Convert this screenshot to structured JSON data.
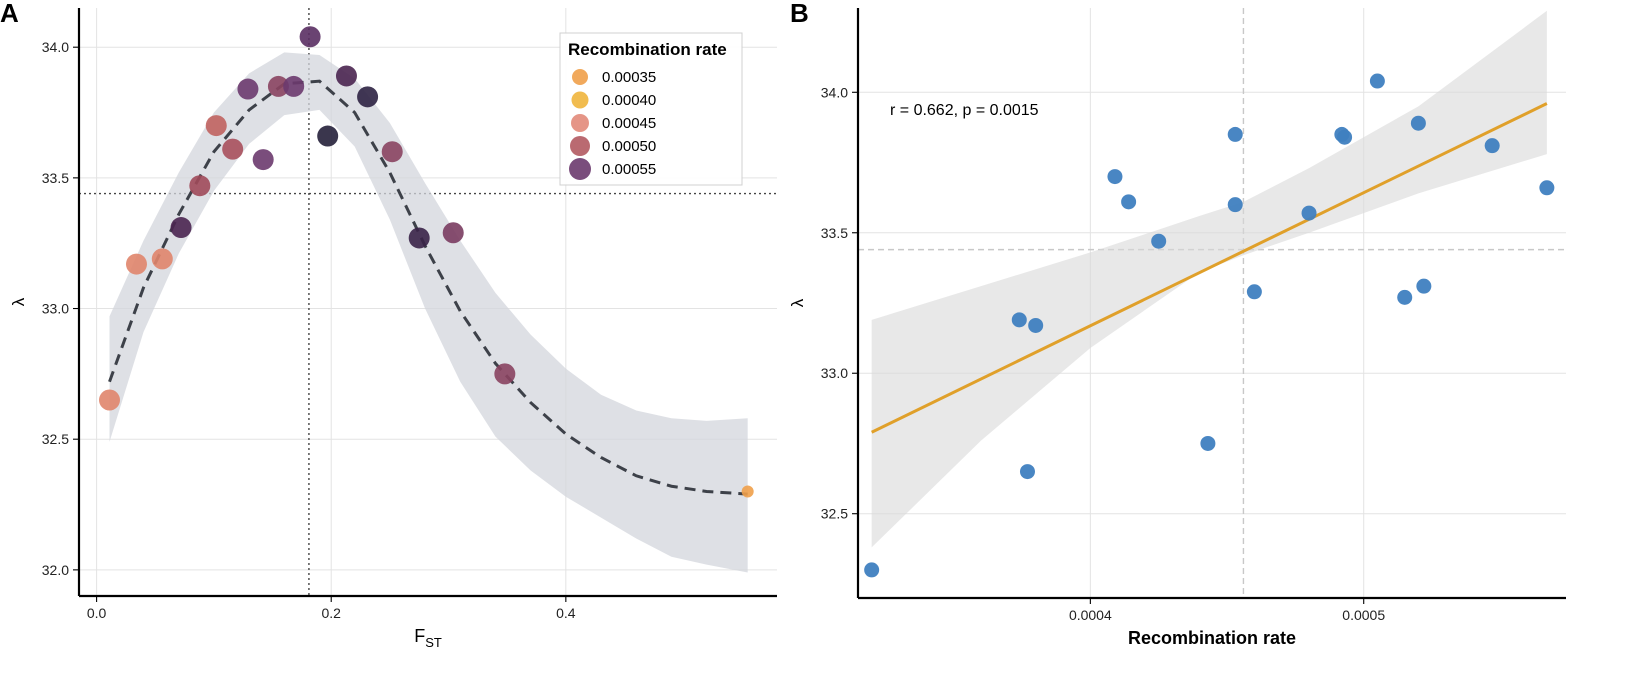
{
  "chart_data": [
    {
      "panel": "A",
      "type": "scatter",
      "title": "",
      "xlabel_main": "F",
      "xlabel_sub": "ST",
      "ylabel": "λ",
      "xlim": [
        -0.015,
        0.58
      ],
      "ylim": [
        31.9,
        34.15
      ],
      "xticks": [
        0.0,
        0.2,
        0.4
      ],
      "xtick_labels": [
        "0.0",
        "0.2",
        "0.4"
      ],
      "yticks": [
        32.0,
        32.5,
        33.0,
        33.5,
        34.0
      ],
      "ytick_labels": [
        "32.0",
        "32.5",
        "33.0",
        "33.5",
        "34.0"
      ],
      "grid": true,
      "vline_x": 0.181,
      "hline_y": 33.44,
      "legend": {
        "title": "Recombination rate",
        "placement": "top-right",
        "entries": [
          {
            "label": "0.00035",
            "color": "#f0a04a"
          },
          {
            "label": "0.00040",
            "color": "#f0b53c"
          },
          {
            "label": "0.00045",
            "color": "#e2897a"
          },
          {
            "label": "0.00050",
            "color": "#b25a62"
          },
          {
            "label": "0.00055",
            "color": "#6b3a6e"
          }
        ]
      },
      "points": [
        {
          "x": 0.011,
          "y": 32.65,
          "rate": 0.000377,
          "color": "#e0856c"
        },
        {
          "x": 0.034,
          "y": 33.17,
          "rate": 0.00038,
          "color": "#e0856c"
        },
        {
          "x": 0.056,
          "y": 33.19,
          "rate": 0.000374,
          "color": "#e0856c"
        },
        {
          "x": 0.072,
          "y": 33.31,
          "rate": 0.000522,
          "color": "#4a2550"
        },
        {
          "x": 0.088,
          "y": 33.47,
          "rate": 0.000425,
          "color": "#a04a5a"
        },
        {
          "x": 0.102,
          "y": 33.7,
          "rate": 0.000409,
          "color": "#c0635f"
        },
        {
          "x": 0.116,
          "y": 33.61,
          "rate": 0.000414,
          "color": "#a8505c"
        },
        {
          "x": 0.129,
          "y": 33.84,
          "rate": 0.000492,
          "color": "#6b3a6e"
        },
        {
          "x": 0.142,
          "y": 33.57,
          "rate": 0.00048,
          "color": "#6b3a6e"
        },
        {
          "x": 0.155,
          "y": 33.85,
          "rate": 0.000453,
          "color": "#8a4460"
        },
        {
          "x": 0.168,
          "y": 33.85,
          "rate": 0.000493,
          "color": "#6b3a6e"
        },
        {
          "x": 0.182,
          "y": 34.04,
          "rate": 0.000505,
          "color": "#5a2f63"
        },
        {
          "x": 0.197,
          "y": 33.66,
          "rate": 0.000567,
          "color": "#25203a"
        },
        {
          "x": 0.213,
          "y": 33.89,
          "rate": 0.00052,
          "color": "#4a2550"
        },
        {
          "x": 0.231,
          "y": 33.81,
          "rate": 0.000547,
          "color": "#2d2242"
        },
        {
          "x": 0.252,
          "y": 33.6,
          "rate": 0.000453,
          "color": "#8a4460"
        },
        {
          "x": 0.275,
          "y": 33.27,
          "rate": 0.000515,
          "color": "#3a2348"
        },
        {
          "x": 0.304,
          "y": 33.29,
          "rate": 0.00046,
          "color": "#7a3c60"
        },
        {
          "x": 0.348,
          "y": 32.75,
          "rate": 0.000443,
          "color": "#8a4460"
        },
        {
          "x": 0.555,
          "y": 32.3,
          "rate": 0.00032,
          "color": "#f0a04a",
          "size": "small"
        }
      ],
      "fit_curve": {
        "style": "dashed",
        "color": "#3d4149",
        "x": [
          0.011,
          0.04,
          0.07,
          0.1,
          0.13,
          0.16,
          0.19,
          0.22,
          0.25,
          0.28,
          0.31,
          0.34,
          0.37,
          0.4,
          0.43,
          0.46,
          0.49,
          0.52,
          0.555
        ],
        "y": [
          32.72,
          33.08,
          33.36,
          33.6,
          33.76,
          33.86,
          33.87,
          33.75,
          33.52,
          33.24,
          32.99,
          32.79,
          32.64,
          32.52,
          32.43,
          32.36,
          32.32,
          32.3,
          32.29
        ],
        "band_upper": [
          32.97,
          33.26,
          33.52,
          33.75,
          33.9,
          33.98,
          33.97,
          33.88,
          33.71,
          33.48,
          33.26,
          33.06,
          32.9,
          32.77,
          32.67,
          32.61,
          32.58,
          32.57,
          32.58
        ],
        "band_lower": [
          32.49,
          32.91,
          33.21,
          33.45,
          33.63,
          33.74,
          33.76,
          33.62,
          33.34,
          33.0,
          32.72,
          32.51,
          32.38,
          32.28,
          32.2,
          32.12,
          32.05,
          32.02,
          31.99
        ]
      }
    },
    {
      "panel": "B",
      "type": "scatter",
      "title": "",
      "xlabel": "Recombination rate",
      "ylabel": "λ",
      "xlim": [
        0.000315,
        0.000574
      ],
      "ylim": [
        32.2,
        34.3
      ],
      "xticks": [
        0.0004,
        0.0005
      ],
      "xtick_labels": [
        "0.0004",
        "0.0005"
      ],
      "yticks": [
        32.5,
        33.0,
        33.5,
        34.0
      ],
      "ytick_labels": [
        "32.5",
        "33.0",
        "33.5",
        "34.0"
      ],
      "grid": true,
      "vline_x": 0.000456,
      "hline_y": 33.44,
      "annotation": "r = 0.662, p = 0.0015",
      "point_color": "#3f7fc0",
      "points": [
        {
          "x": 0.00032,
          "y": 32.3
        },
        {
          "x": 0.000374,
          "y": 33.19
        },
        {
          "x": 0.000377,
          "y": 32.65
        },
        {
          "x": 0.00038,
          "y": 33.17
        },
        {
          "x": 0.000409,
          "y": 33.7
        },
        {
          "x": 0.000414,
          "y": 33.61
        },
        {
          "x": 0.000425,
          "y": 33.47
        },
        {
          "x": 0.000443,
          "y": 32.75
        },
        {
          "x": 0.000453,
          "y": 33.85
        },
        {
          "x": 0.000453,
          "y": 33.6
        },
        {
          "x": 0.00046,
          "y": 33.29
        },
        {
          "x": 0.00048,
          "y": 33.57
        },
        {
          "x": 0.000492,
          "y": 33.85
        },
        {
          "x": 0.000493,
          "y": 33.84
        },
        {
          "x": 0.000505,
          "y": 34.04
        },
        {
          "x": 0.000515,
          "y": 33.27
        },
        {
          "x": 0.00052,
          "y": 33.89
        },
        {
          "x": 0.000522,
          "y": 33.31
        },
        {
          "x": 0.000547,
          "y": 33.81
        },
        {
          "x": 0.000567,
          "y": 33.66
        }
      ],
      "fit_line": {
        "color": "#e0a02a",
        "x": [
          0.00032,
          0.000567
        ],
        "y": [
          32.79,
          33.96
        ],
        "band_x": [
          0.00032,
          0.00036,
          0.0004,
          0.00044,
          0.000456,
          0.00048,
          0.00052,
          0.000567
        ],
        "band_upper": [
          33.19,
          33.31,
          33.43,
          33.56,
          33.61,
          33.73,
          33.95,
          34.29
        ],
        "band_lower": [
          32.38,
          32.76,
          33.09,
          33.36,
          33.42,
          33.5,
          33.64,
          33.78
        ]
      }
    }
  ]
}
